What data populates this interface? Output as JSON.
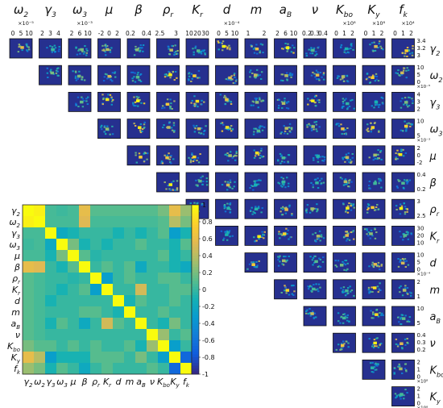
{
  "chart_data": [
    {
      "type": "scatter",
      "kind": "pairwise-density-matrix",
      "layout": "upper-triangle",
      "background_color": "#1f2a8a",
      "panel_colormap": "parula",
      "parameters": [
        {
          "id": "omega2",
          "base": "ω",
          "sub": "2",
          "ticks": [
            "0",
            "5",
            "10"
          ],
          "exp": "×10⁻⁵"
        },
        {
          "id": "gamma3",
          "base": "γ",
          "sub": "3",
          "ticks": [
            "2",
            "3",
            "4"
          ],
          "exp": ""
        },
        {
          "id": "omega3",
          "base": "ω",
          "sub": "3",
          "ticks": [
            "2",
            "6",
            "10"
          ],
          "exp": "×10⁻³"
        },
        {
          "id": "mu",
          "base": "μ",
          "sub": "",
          "ticks": [
            "-2",
            "0",
            "2"
          ],
          "exp": ""
        },
        {
          "id": "beta",
          "base": "β",
          "sub": "",
          "ticks": [
            "0.2",
            "0.4"
          ],
          "exp": ""
        },
        {
          "id": "rho_r",
          "base": "ρ",
          "sub": "r",
          "ticks": [
            "2.5",
            "3"
          ],
          "exp": ""
        },
        {
          "id": "Kr",
          "base": "K",
          "sub": "r",
          "ticks": [
            "10",
            "20",
            "30"
          ],
          "exp": ""
        },
        {
          "id": "d",
          "base": "d",
          "sub": "",
          "ticks": [
            "0",
            "5",
            "10"
          ],
          "exp": "×10⁻⁴"
        },
        {
          "id": "m",
          "base": "m",
          "sub": "",
          "ticks": [
            "1",
            "2"
          ],
          "exp": ""
        },
        {
          "id": "aB",
          "base": "a",
          "sub": "B",
          "ticks": [
            "2",
            "6",
            "10"
          ],
          "exp": ""
        },
        {
          "id": "nu",
          "base": "ν",
          "sub": "",
          "ticks": [
            "0.2",
            "0.3",
            "0.4"
          ],
          "exp": ""
        },
        {
          "id": "Kbo",
          "base": "K",
          "sub": "bo",
          "ticks": [
            "0",
            "1",
            "2"
          ],
          "exp": "×10⁸"
        },
        {
          "id": "Ky",
          "base": "K",
          "sub": "y",
          "ticks": [
            "0",
            "1",
            "2"
          ],
          "exp": "×10⁸"
        },
        {
          "id": "fk",
          "base": "f",
          "sub": "k",
          "ticks": [
            "0",
            "1",
            "2"
          ],
          "exp": "×10⁴"
        }
      ],
      "row_parameters": [
        {
          "base": "γ",
          "sub": "2",
          "ticks": [
            "3.4",
            "3.2",
            "3"
          ],
          "exp": ""
        },
        {
          "base": "ω",
          "sub": "2",
          "ticks": [
            "10",
            "5",
            "0"
          ],
          "exp": "×10⁻⁵"
        },
        {
          "base": "γ",
          "sub": "3",
          "ticks": [
            "4",
            "3",
            "2"
          ],
          "exp": ""
        },
        {
          "base": "ω",
          "sub": "3",
          "ticks": [
            "10",
            "5"
          ],
          "exp": "×10⁻³"
        },
        {
          "base": "μ",
          "sub": "",
          "ticks": [
            "2",
            "0",
            "-2"
          ],
          "exp": ""
        },
        {
          "base": "β",
          "sub": "",
          "ticks": [
            "0.4",
            "0.2"
          ],
          "exp": ""
        },
        {
          "base": "ρ",
          "sub": "r",
          "ticks": [
            "3",
            "2.5"
          ],
          "exp": ""
        },
        {
          "base": "K",
          "sub": "r",
          "ticks": [
            "30",
            "20",
            "10"
          ],
          "exp": ""
        },
        {
          "base": "d",
          "sub": "",
          "ticks": [
            "10",
            "5",
            "0"
          ],
          "exp": "×10⁻⁴"
        },
        {
          "base": "m",
          "sub": "",
          "ticks": [
            "2",
            "1"
          ],
          "exp": ""
        },
        {
          "base": "a",
          "sub": "B",
          "ticks": [
            "10",
            "5"
          ],
          "exp": ""
        },
        {
          "base": "ν",
          "sub": "",
          "ticks": [
            "0.4",
            "0.3",
            "0.2"
          ],
          "exp": ""
        },
        {
          "base": "K",
          "sub": "bo",
          "ticks": [
            "2",
            "1",
            "0"
          ],
          "exp": "×10⁸"
        },
        {
          "base": "K",
          "sub": "y",
          "ticks": [
            "2",
            "1",
            "0"
          ],
          "exp": "×10⁸"
        }
      ]
    },
    {
      "type": "heatmap",
      "kind": "correlation-matrix",
      "labels": [
        "γ2",
        "ω2",
        "γ3",
        "ω3",
        "μ",
        "β",
        "ρr",
        "Kr",
        "d",
        "m",
        "aB",
        "ν",
        "Kbo",
        "Ky",
        "fk"
      ],
      "label_parts": [
        [
          "γ",
          "2"
        ],
        [
          "ω",
          "2"
        ],
        [
          "γ",
          "3"
        ],
        [
          "ω",
          "3"
        ],
        [
          "μ",
          ""
        ],
        [
          "β",
          ""
        ],
        [
          "ρ",
          "r"
        ],
        [
          "K",
          "r"
        ],
        [
          "d",
          ""
        ],
        [
          "m",
          ""
        ],
        [
          "a",
          "B"
        ],
        [
          "ν",
          ""
        ],
        [
          "K",
          "bo"
        ],
        [
          "K",
          "y"
        ],
        [
          "f",
          "k"
        ]
      ],
      "colormap": "parula",
      "clim": [
        -1,
        1
      ],
      "colorbar_ticks": [
        "1",
        "0.8",
        "0.6",
        "0.4",
        "0.2",
        "0",
        "-0.2",
        "-0.4",
        "-0.6",
        "-0.8",
        "-1"
      ],
      "values": [
        [
          1.0,
          0.95,
          0.05,
          0.02,
          0.05,
          0.6,
          0.1,
          0.1,
          0.1,
          0.1,
          0.1,
          0.1,
          0.2,
          0.6,
          0.3
        ],
        [
          0.95,
          1.0,
          0.05,
          0.05,
          0.05,
          0.55,
          0.05,
          0.05,
          0.05,
          0.05,
          0.05,
          0.05,
          0.1,
          0.4,
          0.2
        ],
        [
          0.05,
          0.05,
          1.0,
          -0.2,
          -0.1,
          0.0,
          0.0,
          0.0,
          -0.1,
          0.0,
          -0.1,
          0.0,
          0.1,
          -0.3,
          -0.1
        ],
        [
          0.02,
          0.05,
          -0.2,
          1.0,
          0.2,
          -0.1,
          0.0,
          -0.1,
          0.0,
          0.0,
          0.1,
          0.0,
          0.0,
          -0.1,
          0.1
        ],
        [
          0.05,
          0.05,
          -0.1,
          0.2,
          1.0,
          0.1,
          -0.05,
          0.0,
          0.0,
          0.0,
          0.0,
          0.0,
          0.1,
          -0.1,
          0.0
        ],
        [
          0.6,
          0.55,
          0.0,
          -0.1,
          0.1,
          1.0,
          0.0,
          0.1,
          0.0,
          0.1,
          -0.2,
          0.0,
          0.0,
          -0.1,
          -0.2
        ],
        [
          0.1,
          0.05,
          0.0,
          0.0,
          -0.05,
          0.0,
          1.0,
          -0.3,
          0.0,
          0.1,
          0.0,
          0.0,
          0.1,
          0.1,
          0.0
        ],
        [
          0.1,
          0.05,
          0.0,
          -0.1,
          0.0,
          0.1,
          -0.3,
          1.0,
          0.0,
          0.0,
          0.5,
          0.0,
          0.0,
          0.1,
          0.1
        ],
        [
          0.1,
          0.05,
          -0.1,
          0.0,
          0.0,
          0.0,
          0.0,
          0.0,
          1.0,
          -0.1,
          0.1,
          0.0,
          0.0,
          0.1,
          0.0
        ],
        [
          0.1,
          0.05,
          0.0,
          0.0,
          0.0,
          0.1,
          0.1,
          0.0,
          -0.1,
          1.0,
          0.0,
          0.0,
          0.1,
          0.0,
          0.0
        ],
        [
          0.1,
          0.05,
          -0.1,
          0.1,
          0.0,
          -0.2,
          0.0,
          0.5,
          0.1,
          0.0,
          1.0,
          0.0,
          -0.1,
          0.2,
          0.0
        ],
        [
          0.1,
          0.05,
          0.0,
          0.0,
          0.0,
          0.0,
          0.0,
          0.0,
          0.0,
          0.0,
          0.0,
          1.0,
          0.3,
          0.0,
          0.1
        ],
        [
          0.2,
          0.1,
          0.1,
          0.0,
          0.1,
          0.0,
          0.1,
          0.0,
          0.0,
          0.1,
          -0.1,
          0.3,
          1.0,
          -0.3,
          0.0
        ],
        [
          0.6,
          0.4,
          -0.3,
          -0.1,
          -0.1,
          -0.1,
          0.1,
          0.1,
          0.1,
          0.0,
          0.2,
          0.0,
          -0.3,
          1.0,
          -0.7
        ],
        [
          0.3,
          0.2,
          -0.1,
          0.1,
          0.0,
          -0.2,
          0.0,
          0.1,
          0.0,
          0.0,
          0.0,
          0.1,
          0.0,
          -0.7,
          1.0
        ]
      ]
    }
  ]
}
